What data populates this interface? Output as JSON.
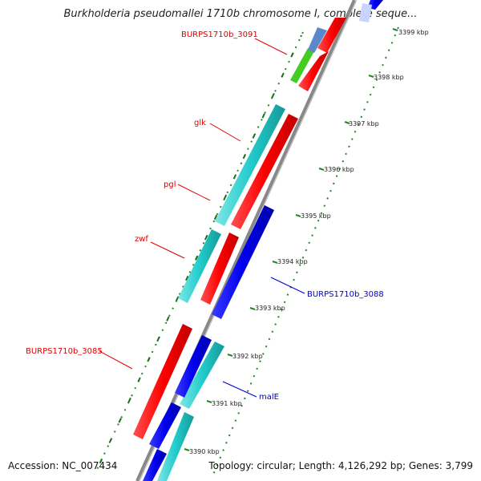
{
  "title": "Burkholderia pseudomallei 1710b chromosome I, complete seque...",
  "footer": {
    "accession": "Accession: NC_007434",
    "topology": "Topology: circular; Length: 4,126,292 bp; Genes: 3,799"
  },
  "ticks": [
    "3399 kbp",
    "3398 kbp",
    "3397 kbp",
    "3396 kbp",
    "3395 kbp",
    "3394 kbp",
    "3393 kbp",
    "3392 kbp",
    "3391 kbp",
    "3390 kbp"
  ],
  "gene_labels": [
    {
      "text": "BURPS1710b_3091",
      "color": "#e00000"
    },
    {
      "text": "glk",
      "color": "#e00000"
    },
    {
      "text": "pgl",
      "color": "#e00000"
    },
    {
      "text": "zwf",
      "color": "#e00000"
    },
    {
      "text": "BURPS1710b_3085",
      "color": "#e00000"
    },
    {
      "text": "BURPS1710b_3088",
      "color": "#0000cc"
    },
    {
      "text": "malE",
      "color": "#0000cc"
    }
  ],
  "colors": {
    "forward_strand": "#ff0000",
    "reverse_strand": "#0000ee",
    "cds_other": "#22cccc",
    "backbone": "#888888",
    "gc_dots": "#228822"
  }
}
